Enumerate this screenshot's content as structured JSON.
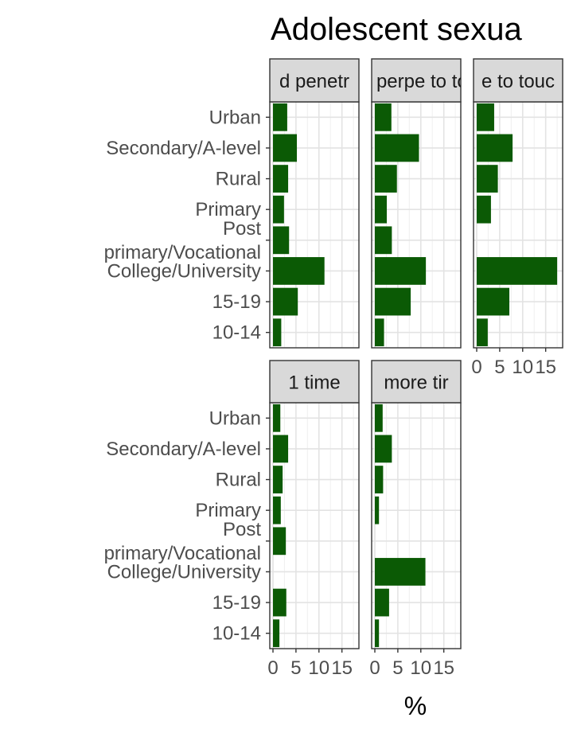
{
  "chart_data": {
    "type": "bar",
    "orientation": "horizontal",
    "facets": true,
    "title": "Adolescent sexua",
    "xlabel": "%",
    "ylabel": "",
    "xlim": [
      0,
      18
    ],
    "xticks": [
      "0",
      "5",
      "10",
      "15"
    ],
    "xtick_values": [
      0,
      5,
      10,
      15
    ],
    "grid": true,
    "bar_color": "#0b5a05",
    "categories": [
      "Urban",
      "Secondary/A-level",
      "Rural",
      "Primary",
      "Post primary/Vocational",
      "College/University",
      "15-19",
      "10-14"
    ],
    "category_lines": [
      [
        "Urban"
      ],
      [
        "Secondary/A-level"
      ],
      [
        "Rural"
      ],
      [
        "Primary"
      ],
      [
        "Post",
        "primary/Vocational"
      ],
      [
        "College/University"
      ],
      [
        "15-19"
      ],
      [
        "10-14"
      ]
    ],
    "panels": [
      {
        "strip": "d penetr",
        "values": [
          3.1,
          5.2,
          3.3,
          2.4,
          3.5,
          11.2,
          5.4,
          1.8
        ]
      },
      {
        "strip": "but perpe to touc",
        "values": [
          3.6,
          9.6,
          4.8,
          2.6,
          3.7,
          11.1,
          7.8,
          2.0
        ]
      },
      {
        "strip": "e to touc",
        "values": [
          3.8,
          7.8,
          4.6,
          3.1,
          0,
          17.5,
          7.1,
          2.4
        ]
      },
      {
        "strip": "1 time",
        "values": [
          1.6,
          3.3,
          2.1,
          1.7,
          2.8,
          0,
          2.9,
          1.4
        ]
      },
      {
        "strip": "more tir",
        "values": [
          1.7,
          3.7,
          1.8,
          0.9,
          0,
          11.0,
          3.1,
          0.9
        ]
      }
    ]
  }
}
